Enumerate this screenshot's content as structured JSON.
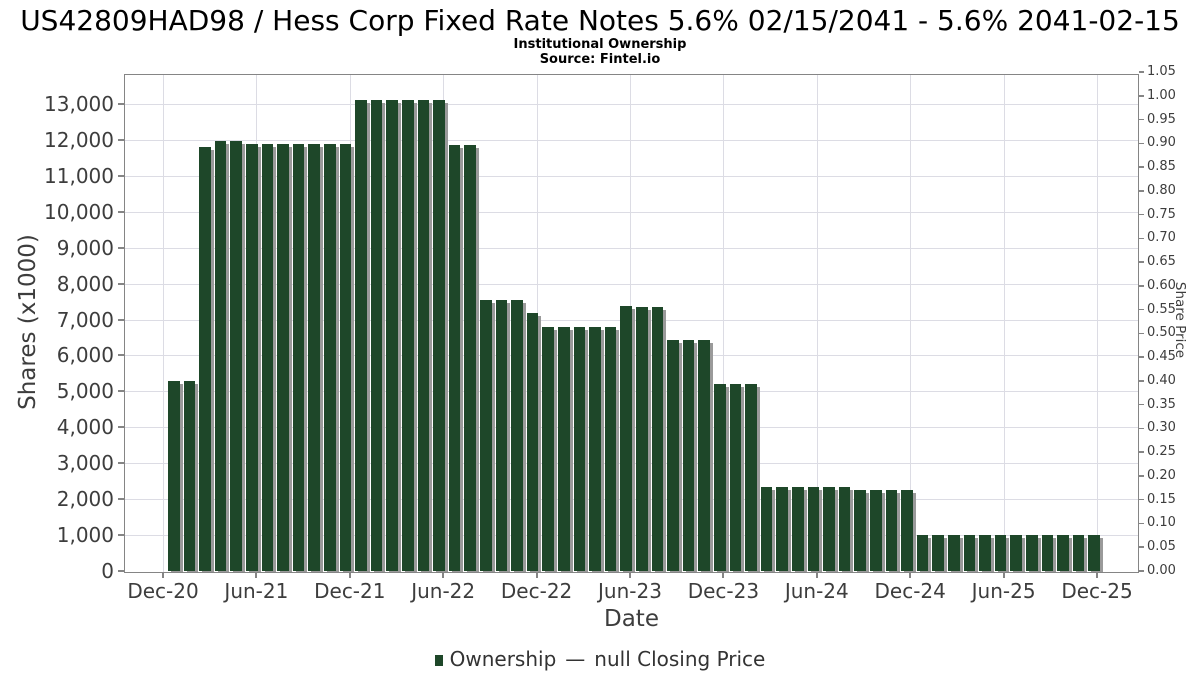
{
  "header": {
    "title": "US42809HAD98 / Hess Corp Fixed Rate Notes 5.6% 02/15/2041 - 5.6% 2041-02-15",
    "subtitle": "Institutional Ownership",
    "source": "Source: Fintel.io"
  },
  "legend": {
    "ownership_label": "Ownership",
    "separator": "—",
    "price_label": "null Closing Price"
  },
  "colors": {
    "bar": "#1e4729",
    "bar_shadow": "#9a9a9a",
    "grid": "#dcdce4",
    "spine": "#858585",
    "tick_text": "#3d3d3d"
  },
  "chart_data": {
    "type": "bar",
    "title": "US42809HAD98 / Hess Corp Fixed Rate Notes 5.6% 02/15/2041 - 5.6% 2041-02-15",
    "subtitle": "Institutional Ownership",
    "source": "Source: Fintel.io",
    "xlabel": "Date",
    "ylabel": "Shares (x1000)",
    "ylabel_right": "Share Price",
    "grid": true,
    "legend_position": "bottom",
    "ylim": [
      0,
      13870
    ],
    "ylim_right": [
      0.0,
      1.09
    ],
    "x_tick_labels": [
      "Dec-20",
      "Jun-21",
      "Dec-21",
      "Jun-22",
      "Dec-22",
      "Jun-23",
      "Dec-23",
      "Jun-24",
      "Dec-24",
      "Jun-25",
      "Dec-25"
    ],
    "y_tick_labels": [
      "0",
      "1,000",
      "2,000",
      "3,000",
      "4,000",
      "5,000",
      "6,000",
      "7,000",
      "8,000",
      "9,000",
      "10,000",
      "11,000",
      "12,000",
      "13,000"
    ],
    "y_tick_labels_right": [
      "0.00",
      "0.05",
      "0.10",
      "0.15",
      "0.20",
      "0.25",
      "0.30",
      "0.35",
      "0.40",
      "0.45",
      "0.50",
      "0.55",
      "0.60",
      "0.65",
      "0.70",
      "0.75",
      "0.80",
      "0.85",
      "0.90",
      "0.95",
      "1.00",
      "1.05"
    ],
    "categories": [
      "Jan-21",
      "Feb-21",
      "Mar-21",
      "Apr-21",
      "May-21",
      "Jun-21",
      "Jul-21",
      "Aug-21",
      "Sep-21",
      "Oct-21",
      "Nov-21",
      "Dec-21",
      "Jan-22",
      "Feb-22",
      "Mar-22",
      "Apr-22",
      "May-22",
      "Jun-22",
      "Jul-22",
      "Aug-22",
      "Sep-22",
      "Oct-22",
      "Nov-22",
      "Dec-22",
      "Jan-23",
      "Feb-23",
      "Mar-23",
      "Apr-23",
      "May-23",
      "Jun-23",
      "Jul-23",
      "Aug-23",
      "Sep-23",
      "Oct-23",
      "Nov-23",
      "Dec-23",
      "Jan-24",
      "Feb-24",
      "Mar-24",
      "Apr-24",
      "May-24",
      "Jun-24",
      "Jul-24",
      "Aug-24",
      "Sep-24",
      "Oct-24",
      "Nov-24",
      "Dec-24",
      "Jan-25",
      "Feb-25",
      "Mar-25",
      "Apr-25",
      "May-25",
      "Jun-25",
      "Jul-25",
      "Aug-25",
      "Sep-25",
      "Oct-25",
      "Nov-25",
      "Dec-25"
    ],
    "series": [
      {
        "name": "Ownership",
        "units": "shares x1000",
        "values": [
          5300,
          5300,
          11800,
          11970,
          11970,
          11890,
          11890,
          11890,
          11890,
          11890,
          11890,
          11890,
          13100,
          13100,
          13100,
          13100,
          13100,
          13100,
          11850,
          11850,
          7530,
          7530,
          7530,
          7170,
          6780,
          6780,
          6800,
          6800,
          6800,
          7380,
          7360,
          7360,
          6440,
          6440,
          6440,
          5200,
          5200,
          5200,
          2350,
          2350,
          2350,
          2350,
          2350,
          2350,
          2250,
          2250,
          2250,
          2250,
          1000,
          1000,
          1000,
          1000,
          1000,
          1000,
          1000,
          1000,
          1000,
          1000,
          1000,
          1000
        ]
      },
      {
        "name": "null Closing Price",
        "units": "share price",
        "values": []
      }
    ]
  }
}
